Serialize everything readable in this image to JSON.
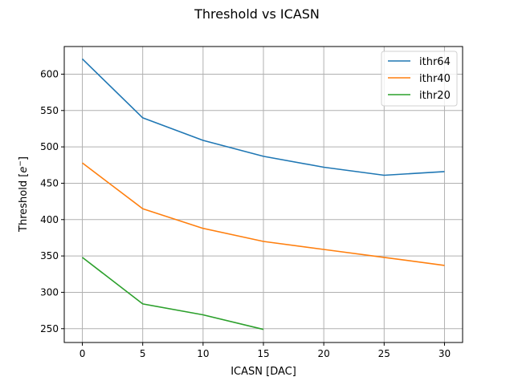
{
  "chart_data": {
    "type": "line",
    "title": "Threshold vs ICASN",
    "xlabel": "ICASN [DAC]",
    "ylabel_main": "Threshold [",
    "ylabel_sup": "e",
    "ylabel_sup_exp": "−",
    "ylabel_end": "]",
    "xlim": [
      -1.5,
      31.5
    ],
    "ylim": [
      231,
      638
    ],
    "xticks": [
      0,
      5,
      10,
      15,
      20,
      25,
      30
    ],
    "yticks": [
      250,
      300,
      350,
      400,
      450,
      500,
      550,
      600
    ],
    "grid": true,
    "legend_position": "top-right",
    "series": [
      {
        "name": "ithr64",
        "color": "#1f77b4",
        "x": [
          0,
          5,
          10,
          15,
          20,
          25,
          30
        ],
        "y": [
          621,
          540,
          509,
          487,
          472,
          461,
          466
        ]
      },
      {
        "name": "ithr40",
        "color": "#ff7f0e",
        "x": [
          0,
          5,
          10,
          15,
          20,
          25,
          30
        ],
        "y": [
          478,
          415,
          388,
          370,
          359,
          348,
          337
        ]
      },
      {
        "name": "ithr20",
        "color": "#2ca02c",
        "x": [
          0,
          5,
          10,
          15
        ],
        "y": [
          348,
          284,
          269,
          249
        ]
      }
    ]
  }
}
